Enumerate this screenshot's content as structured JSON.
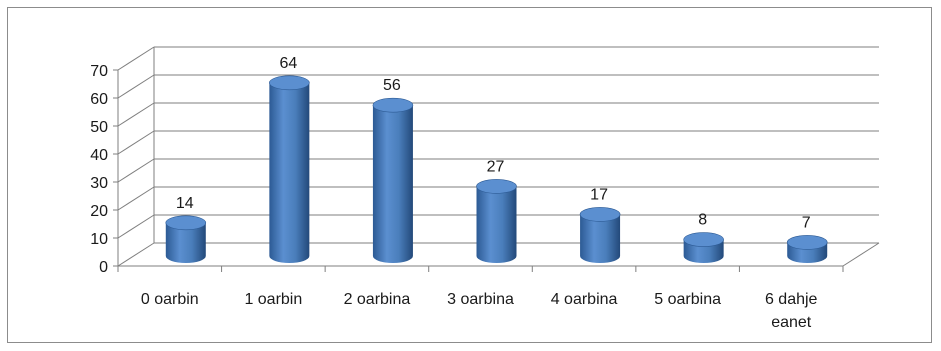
{
  "chart_data": {
    "type": "bar",
    "style": "3d-cylinder",
    "categories": [
      [
        "0 oarbin"
      ],
      [
        "1 oarbin"
      ],
      [
        "2 oarbina"
      ],
      [
        "3 oarbina"
      ],
      [
        "4 oarbina"
      ],
      [
        "5 oarbina"
      ],
      [
        "6 dahje",
        "eanet"
      ]
    ],
    "values": [
      14,
      64,
      56,
      27,
      17,
      8,
      7
    ],
    "data_labels": [
      "14",
      "64",
      "56",
      "27",
      "17",
      "8",
      "7"
    ],
    "y_ticks": [
      "0",
      "10",
      "20",
      "30",
      "40",
      "50",
      "60",
      "70"
    ],
    "ylim": [
      0,
      70
    ],
    "grid": true,
    "legend": "none",
    "bar_color": "#4a7ebb",
    "bar_top_color": "#5b8fd0",
    "bar_dark_color": "#2c5a94"
  }
}
